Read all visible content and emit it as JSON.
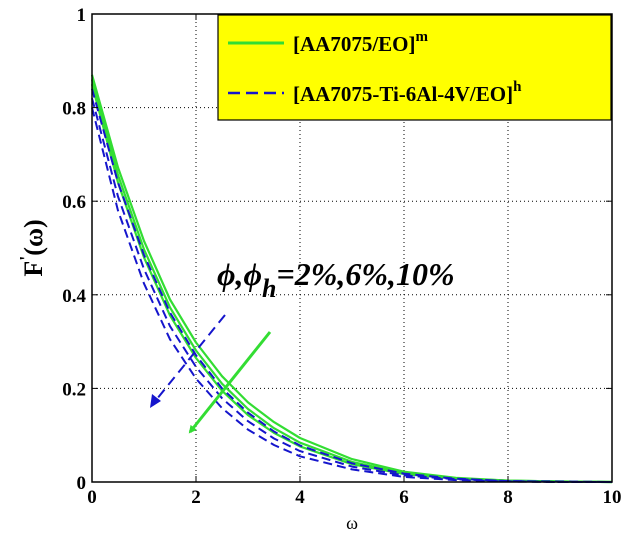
{
  "chart_data": {
    "type": "line",
    "xlabel": "ω",
    "ylabel": {
      "main": "F",
      "prime": "'",
      "arg": "(ω)"
    },
    "xlim": [
      0,
      10
    ],
    "ylim": [
      0,
      1
    ],
    "xticks": [
      "0",
      "2",
      "4",
      "6",
      "8",
      "10"
    ],
    "yticks": [
      "0",
      "0.2",
      "0.4",
      "0.6",
      "0.8",
      "1"
    ],
    "grid": true,
    "legend": {
      "placement": "top-right",
      "background": "#ffff00",
      "entries": [
        {
          "base": "[AA7075/EO]",
          "sup": "m",
          "color": "#33dd33",
          "dash": "solid"
        },
        {
          "base": "[AA7075-Ti-6Al-4V/EO]",
          "sup": "h",
          "color": "#1515cc",
          "dash": "dashed"
        }
      ]
    },
    "annotation": {
      "pre": "ϕ,ϕ",
      "sub": "h",
      "post": "=2%,6%,10%"
    },
    "series": [
      {
        "group": "mono",
        "color": "#33dd33",
        "dash": "solid",
        "x": [
          0,
          0.5,
          1,
          1.5,
          2,
          2.5,
          3,
          3.5,
          4,
          5,
          6,
          7,
          8,
          9,
          10
        ],
        "y": [
          0.87,
          0.672,
          0.515,
          0.39,
          0.298,
          0.226,
          0.17,
          0.128,
          0.094,
          0.049,
          0.022,
          0.009,
          0.003,
          0.001,
          0.0
        ]
      },
      {
        "group": "mono",
        "color": "#33dd33",
        "dash": "solid",
        "x": [
          0,
          0.5,
          1,
          1.5,
          2,
          2.5,
          3,
          3.5,
          4,
          5,
          6,
          7,
          8,
          9,
          10
        ],
        "y": [
          0.86,
          0.656,
          0.497,
          0.373,
          0.281,
          0.21,
          0.156,
          0.115,
          0.084,
          0.043,
          0.019,
          0.008,
          0.003,
          0.001,
          0.0
        ]
      },
      {
        "group": "mono",
        "color": "#33dd33",
        "dash": "solid",
        "x": [
          0,
          0.5,
          1,
          1.5,
          2,
          2.5,
          3,
          3.5,
          4,
          5,
          6,
          7,
          8,
          9,
          10
        ],
        "y": [
          0.85,
          0.64,
          0.48,
          0.356,
          0.265,
          0.195,
          0.143,
          0.105,
          0.076,
          0.038,
          0.017,
          0.007,
          0.002,
          0.001,
          0.0
        ]
      },
      {
        "group": "hybrid",
        "color": "#1515cc",
        "dash": "dashed",
        "x": [
          0,
          0.5,
          1,
          1.5,
          2,
          2.5,
          3,
          3.5,
          4,
          5,
          6,
          7,
          8,
          9,
          10
        ],
        "y": [
          0.84,
          0.64,
          0.485,
          0.362,
          0.271,
          0.2,
          0.148,
          0.108,
          0.078,
          0.04,
          0.018,
          0.007,
          0.002,
          0.001,
          0.0
        ]
      },
      {
        "group": "hybrid",
        "color": "#1515cc",
        "dash": "dashed",
        "x": [
          0,
          0.5,
          1,
          1.5,
          2,
          2.5,
          3,
          3.5,
          4,
          5,
          6,
          7,
          8,
          9,
          10
        ],
        "y": [
          0.82,
          0.61,
          0.455,
          0.333,
          0.246,
          0.179,
          0.13,
          0.093,
          0.066,
          0.033,
          0.014,
          0.006,
          0.002,
          0.0,
          0.0
        ]
      },
      {
        "group": "hybrid",
        "color": "#1515cc",
        "dash": "dashed",
        "x": [
          0,
          0.5,
          1,
          1.5,
          2,
          2.5,
          3,
          3.5,
          4,
          5,
          6,
          7,
          8,
          9,
          10
        ],
        "y": [
          0.8,
          0.58,
          0.424,
          0.305,
          0.221,
          0.158,
          0.112,
          0.079,
          0.055,
          0.027,
          0.011,
          0.004,
          0.001,
          0.0,
          0.0
        ]
      }
    ]
  }
}
